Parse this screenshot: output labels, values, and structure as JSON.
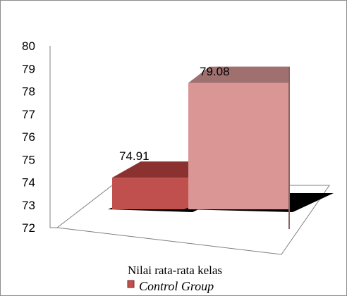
{
  "chart_data": {
    "type": "bar",
    "categories": [
      "Nilai rata-rata kelas"
    ],
    "series": [
      {
        "name": "Control Group",
        "values": [
          74.91
        ],
        "color": "#c0504d"
      },
      {
        "name": "",
        "values": [
          79.08
        ],
        "color": "#d99694"
      }
    ],
    "data_labels": [
      "74.91",
      "79.08"
    ],
    "ylim": [
      72,
      80
    ],
    "yticks": [
      "72",
      "73",
      "74",
      "75",
      "76",
      "77",
      "78",
      "79",
      "80"
    ],
    "legend": {
      "position": "bottom",
      "entries": [
        "Control Group"
      ]
    },
    "grid": false,
    "style": "3d-column"
  }
}
